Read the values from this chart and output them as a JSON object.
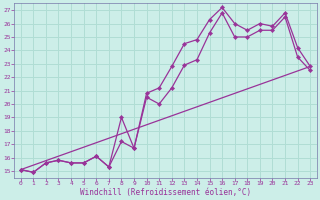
{
  "xlabel": "Windchill (Refroidissement éolien,°C)",
  "bg_color": "#cceee8",
  "grid_color": "#b0ddd4",
  "line_color": "#993399",
  "spine_color": "#7777aa",
  "xlim": [
    -0.5,
    23.5
  ],
  "ylim": [
    14.5,
    27.5
  ],
  "xticks": [
    0,
    1,
    2,
    3,
    4,
    5,
    6,
    7,
    8,
    9,
    10,
    11,
    12,
    13,
    14,
    15,
    16,
    17,
    18,
    19,
    20,
    21,
    22,
    23
  ],
  "yticks": [
    15,
    16,
    17,
    18,
    19,
    20,
    21,
    22,
    23,
    24,
    25,
    26,
    27
  ],
  "line1_x": [
    0,
    1,
    2,
    3,
    4,
    5,
    6,
    7,
    8,
    9,
    10,
    11,
    12,
    13,
    14,
    15,
    16,
    17,
    18,
    19,
    20,
    21,
    22,
    23
  ],
  "line1_y": [
    15.1,
    14.9,
    15.6,
    15.8,
    15.6,
    15.6,
    16.1,
    15.3,
    19.0,
    16.7,
    20.8,
    21.2,
    22.8,
    24.5,
    24.8,
    26.3,
    27.2,
    26.0,
    25.5,
    26.0,
    25.8,
    26.8,
    24.2,
    22.8
  ],
  "line2_x": [
    0,
    1,
    2,
    3,
    4,
    5,
    6,
    7,
    8,
    9,
    10,
    11,
    12,
    13,
    14,
    15,
    16,
    17,
    18,
    19,
    20,
    21,
    22,
    23
  ],
  "line2_y": [
    15.1,
    14.9,
    15.6,
    15.8,
    15.6,
    15.6,
    16.1,
    15.3,
    17.2,
    16.7,
    20.5,
    20.0,
    21.2,
    22.9,
    23.3,
    25.3,
    26.8,
    25.0,
    25.0,
    25.5,
    25.5,
    26.5,
    23.5,
    22.5
  ],
  "line3_x": [
    0,
    23
  ],
  "line3_y": [
    15.1,
    22.8
  ]
}
